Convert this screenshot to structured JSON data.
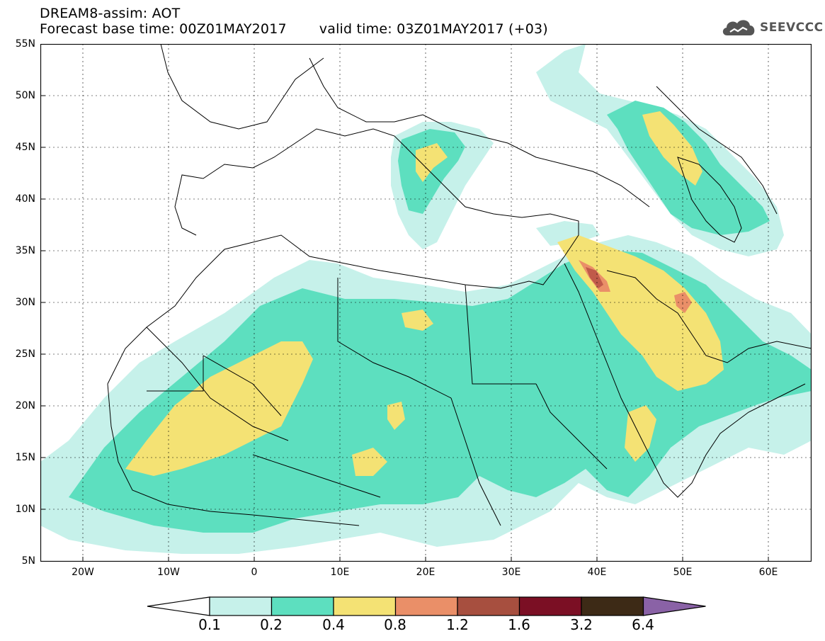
{
  "header": {
    "title": "DREAM8-assim: AOT",
    "base_time": "Forecast base time: 00Z01MAY2017",
    "valid_time": "valid time: 03Z01MAY2017 (+03)"
  },
  "logo": {
    "text": "SEEVCCC",
    "icon": "cloud-icon"
  },
  "map": {
    "lat_labels": [
      "55N",
      "50N",
      "45N",
      "40N",
      "35N",
      "30N",
      "25N",
      "20N",
      "15N",
      "10N",
      "5N"
    ],
    "lon_labels": [
      "20W",
      "10W",
      "0",
      "10E",
      "20E",
      "30E",
      "40E",
      "50E",
      "60E"
    ]
  },
  "colorbar": {
    "levels": [
      "0.1",
      "0.2",
      "0.4",
      "0.8",
      "1.2",
      "1.6",
      "3.2",
      "6.4"
    ],
    "colors": [
      "#ffffff",
      "#c6f1ea",
      "#5ddfbf",
      "#f4e274",
      "#ea8f68",
      "#a74f3f",
      "#7b0f24",
      "#3d2a16",
      "#8a62a6"
    ]
  }
}
